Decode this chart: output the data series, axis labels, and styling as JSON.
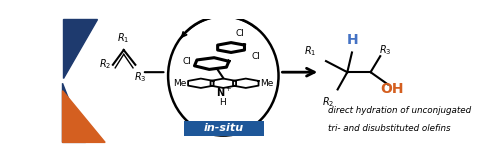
{
  "bg_color": "#ffffff",
  "triangle_blue": "#1e3a6e",
  "triangle_orange": "#d45f20",
  "insitu_bg": "#1e5799",
  "insitu_text": "in-situ",
  "insitu_color": "#ffffff",
  "desc_text1": "direct hydration of unconjugated",
  "desc_text2": "tri- and disubstituted olefins",
  "blue_h_color": "#4472c4",
  "orange_oh_color": "#d45f20",
  "black": "#111111"
}
